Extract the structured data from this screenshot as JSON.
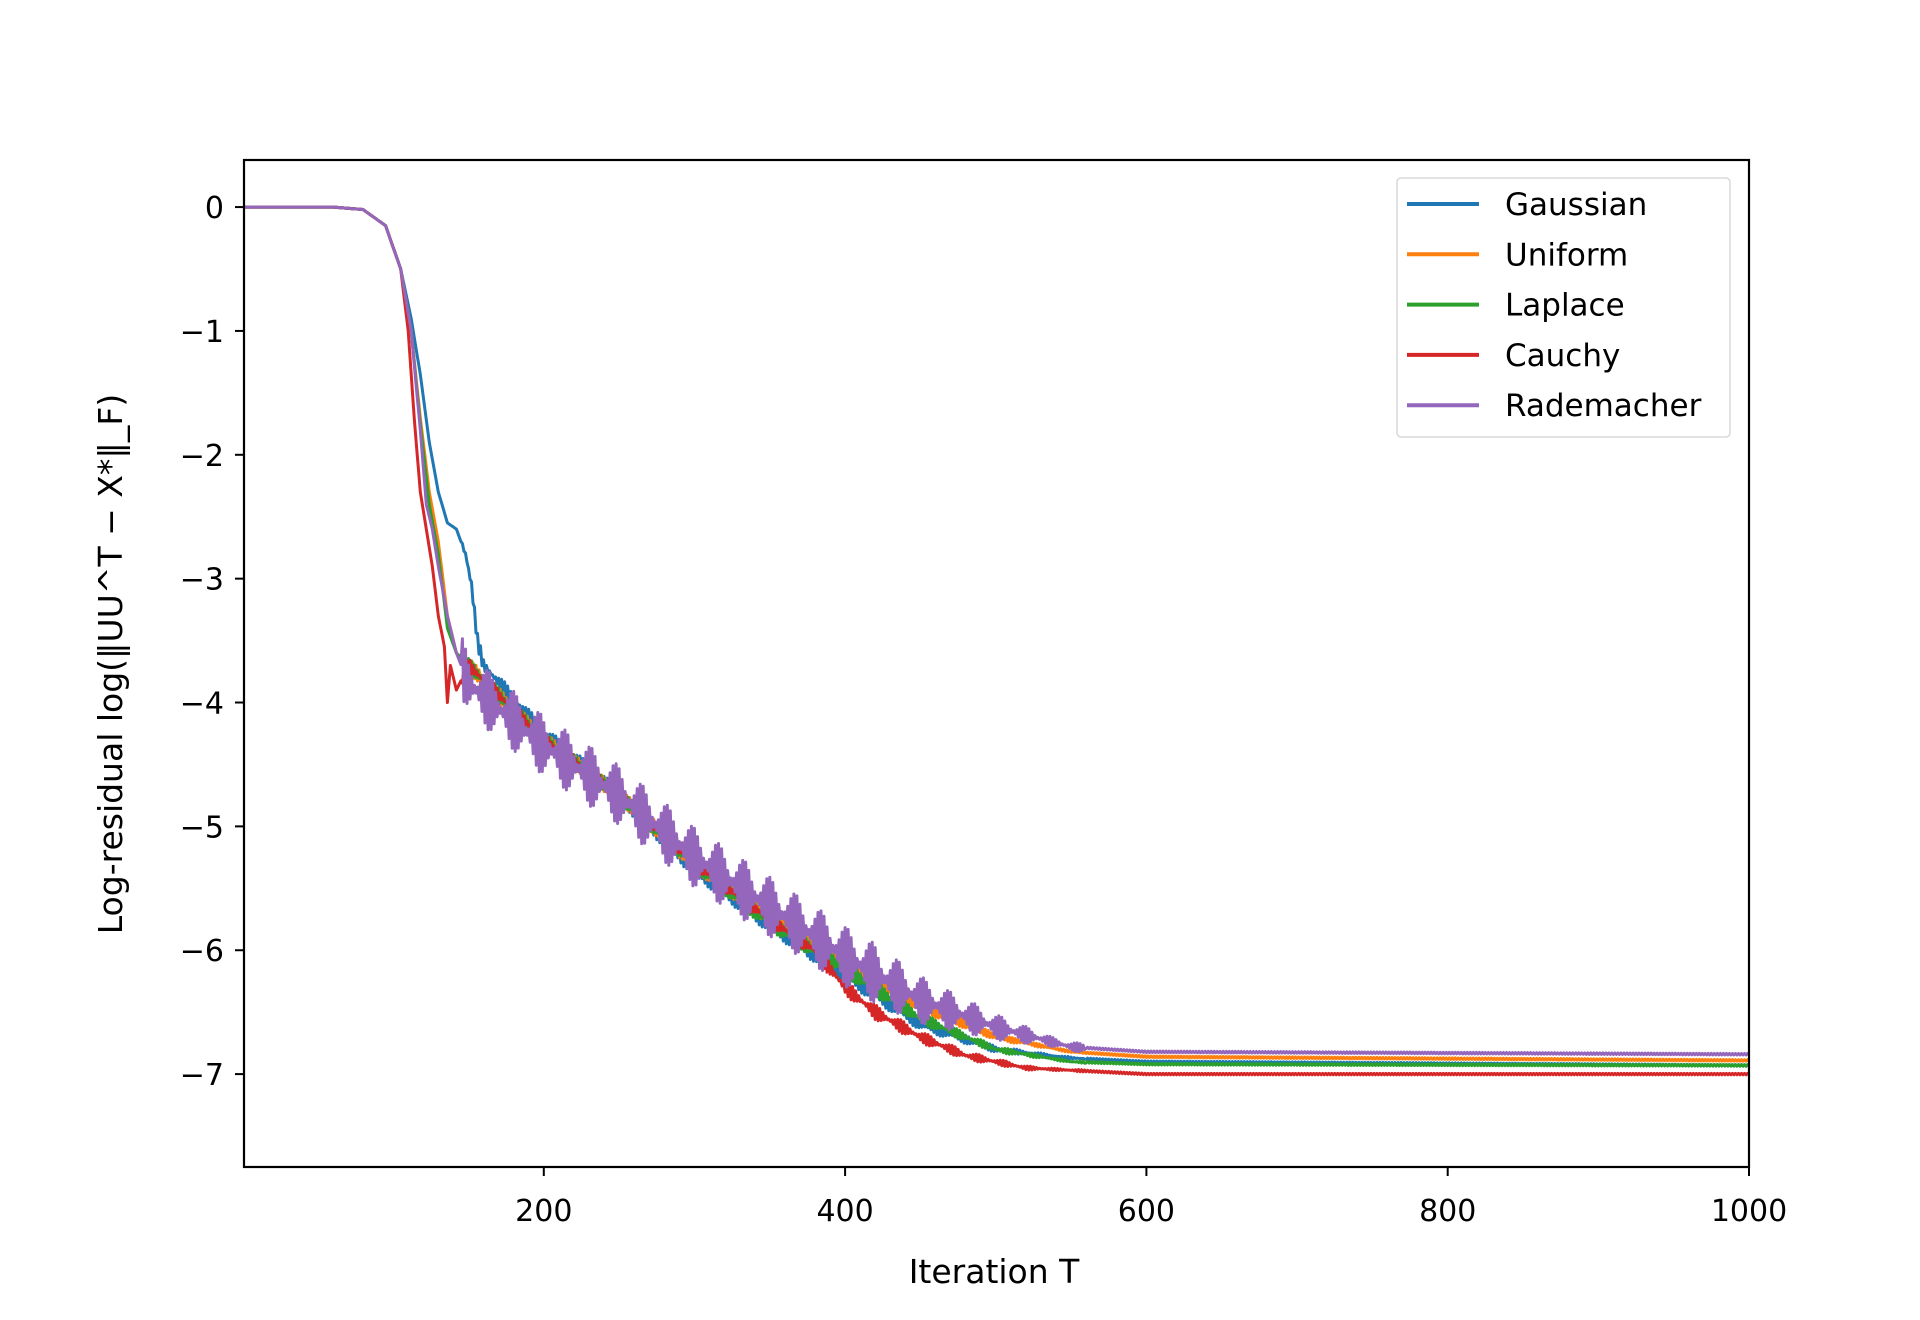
{
  "chart_data": {
    "type": "line",
    "xlabel": "Iteration T",
    "ylabel": "Log-residual log(‖UU^T − X*‖_F)",
    "xlim": [
      1,
      1000
    ],
    "ylim": [
      -7.75,
      0.38
    ],
    "xticks": [
      200,
      400,
      600,
      800,
      1000
    ],
    "yticks": [
      0,
      -1,
      -2,
      -3,
      -4,
      -5,
      -6,
      -7
    ],
    "xtick_labels": [
      "200",
      "400",
      "600",
      "800",
      "1000"
    ],
    "ytick_labels": [
      "0",
      "−1",
      "−2",
      "−3",
      "−4",
      "−5",
      "−6",
      "−7"
    ],
    "grid": false,
    "legend_position": "top-right",
    "series": [
      {
        "name": "Gaussian",
        "color": "#1f77b4",
        "band": 0.06,
        "points": [
          [
            1,
            0
          ],
          [
            60,
            0
          ],
          [
            80,
            -0.02
          ],
          [
            95,
            -0.15
          ],
          [
            105,
            -0.5
          ],
          [
            112,
            -0.9
          ],
          [
            118,
            -1.35
          ],
          [
            124,
            -1.9
          ],
          [
            130,
            -2.3
          ],
          [
            136,
            -2.55
          ],
          [
            142,
            -2.6
          ],
          [
            148,
            -2.8
          ],
          [
            152,
            -3.05
          ],
          [
            156,
            -3.5
          ],
          [
            160,
            -3.7
          ],
          [
            200,
            -4.25
          ],
          [
            250,
            -4.75
          ],
          [
            300,
            -5.35
          ],
          [
            350,
            -5.8
          ],
          [
            400,
            -6.2
          ],
          [
            450,
            -6.6
          ],
          [
            500,
            -6.8
          ],
          [
            550,
            -6.87
          ],
          [
            600,
            -6.9
          ],
          [
            1000,
            -6.93
          ]
        ]
      },
      {
        "name": "Uniform",
        "color": "#ff7f0e",
        "band": 0.06,
        "points": [
          [
            1,
            0
          ],
          [
            60,
            0
          ],
          [
            80,
            -0.02
          ],
          [
            95,
            -0.15
          ],
          [
            105,
            -0.5
          ],
          [
            112,
            -1.0
          ],
          [
            118,
            -1.7
          ],
          [
            124,
            -2.3
          ],
          [
            130,
            -2.7
          ],
          [
            136,
            -3.3
          ],
          [
            142,
            -3.6
          ],
          [
            150,
            -3.7
          ],
          [
            200,
            -4.3
          ],
          [
            250,
            -4.75
          ],
          [
            300,
            -5.3
          ],
          [
            350,
            -5.75
          ],
          [
            400,
            -6.1
          ],
          [
            450,
            -6.45
          ],
          [
            500,
            -6.7
          ],
          [
            550,
            -6.82
          ],
          [
            600,
            -6.86
          ],
          [
            1000,
            -6.89
          ]
        ]
      },
      {
        "name": "Laplace",
        "color": "#2ca02c",
        "band": 0.06,
        "points": [
          [
            1,
            0
          ],
          [
            60,
            0
          ],
          [
            80,
            -0.02
          ],
          [
            95,
            -0.15
          ],
          [
            105,
            -0.5
          ],
          [
            112,
            -1.0
          ],
          [
            118,
            -1.75
          ],
          [
            124,
            -2.4
          ],
          [
            130,
            -2.8
          ],
          [
            136,
            -3.4
          ],
          [
            142,
            -3.6
          ],
          [
            150,
            -3.7
          ],
          [
            200,
            -4.3
          ],
          [
            250,
            -4.75
          ],
          [
            300,
            -5.3
          ],
          [
            350,
            -5.78
          ],
          [
            400,
            -6.15
          ],
          [
            450,
            -6.55
          ],
          [
            500,
            -6.8
          ],
          [
            550,
            -6.9
          ],
          [
            600,
            -6.92
          ],
          [
            1000,
            -6.93
          ]
        ]
      },
      {
        "name": "Cauchy",
        "color": "#d62728",
        "band": 0.06,
        "points": [
          [
            1,
            0
          ],
          [
            60,
            0
          ],
          [
            80,
            -0.02
          ],
          [
            95,
            -0.15
          ],
          [
            105,
            -0.5
          ],
          [
            110,
            -1.0
          ],
          [
            114,
            -1.7
          ],
          [
            118,
            -2.3
          ],
          [
            122,
            -2.6
          ],
          [
            126,
            -2.9
          ],
          [
            130,
            -3.3
          ],
          [
            134,
            -3.55
          ],
          [
            136,
            -4.0
          ],
          [
            138,
            -3.7
          ],
          [
            142,
            -3.9
          ],
          [
            150,
            -3.7
          ],
          [
            200,
            -4.3
          ],
          [
            250,
            -4.75
          ],
          [
            300,
            -5.3
          ],
          [
            350,
            -5.75
          ],
          [
            380,
            -6.0
          ],
          [
            400,
            -6.3
          ],
          [
            420,
            -6.5
          ],
          [
            450,
            -6.7
          ],
          [
            480,
            -6.85
          ],
          [
            520,
            -6.95
          ],
          [
            600,
            -7.0
          ],
          [
            1000,
            -7.0
          ]
        ]
      },
      {
        "name": "Rademacher",
        "color": "#9467bd",
        "band": 0.24,
        "points": [
          [
            1,
            0
          ],
          [
            60,
            0
          ],
          [
            80,
            -0.02
          ],
          [
            95,
            -0.15
          ],
          [
            105,
            -0.5
          ],
          [
            112,
            -1.0
          ],
          [
            118,
            -1.8
          ],
          [
            122,
            -2.4
          ],
          [
            126,
            -2.6
          ],
          [
            130,
            -2.9
          ],
          [
            136,
            -3.3
          ],
          [
            142,
            -3.6
          ],
          [
            150,
            -3.85
          ],
          [
            200,
            -4.35
          ],
          [
            250,
            -4.75
          ],
          [
            300,
            -5.25
          ],
          [
            350,
            -5.65
          ],
          [
            400,
            -6.05
          ],
          [
            450,
            -6.4
          ],
          [
            500,
            -6.62
          ],
          [
            550,
            -6.78
          ],
          [
            600,
            -6.82
          ],
          [
            1000,
            -6.84
          ]
        ]
      }
    ]
  }
}
